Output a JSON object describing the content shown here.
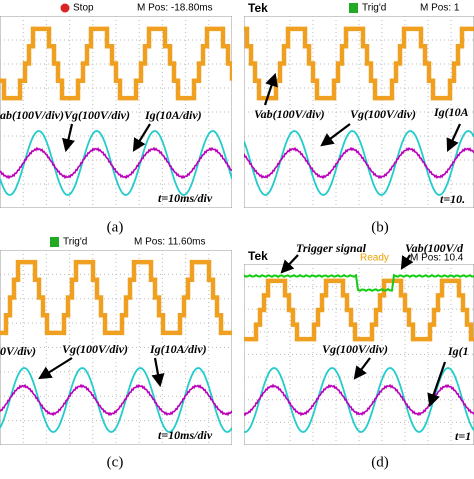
{
  "panels": [
    {
      "status": "Stop",
      "mpos": "M Pos: -18.80ms",
      "labels": [
        "ab(100V/div)",
        "Vg(100V/div)",
        "Ig(10A/div)"
      ],
      "time": "t=10ms/div",
      "caption": "(a)"
    },
    {
      "brand": "Tek",
      "status": "Trig'd",
      "mpos": "M Pos: 1",
      "labels": [
        "Vab(100V/div)",
        "Vg(100V/div)",
        "Ig(10A"
      ],
      "time": "t=10.",
      "caption": "(b)"
    },
    {
      "status": "Trig'd",
      "mpos": "M Pos: 11.60ms",
      "labels": [
        "0V/div)",
        "Vg(100V/div)",
        "Ig(10A/div)"
      ],
      "time": "t=10ms/div",
      "caption": "(c)"
    },
    {
      "brand": "Tek",
      "status": "Ready",
      "mpos": "M Pos: 10.4",
      "labels": [
        "Trigger signal",
        "Vab(100V/d",
        "Vg(100V/div)",
        "Ig(1"
      ],
      "time": "t=1",
      "caption": "(d)"
    }
  ]
}
